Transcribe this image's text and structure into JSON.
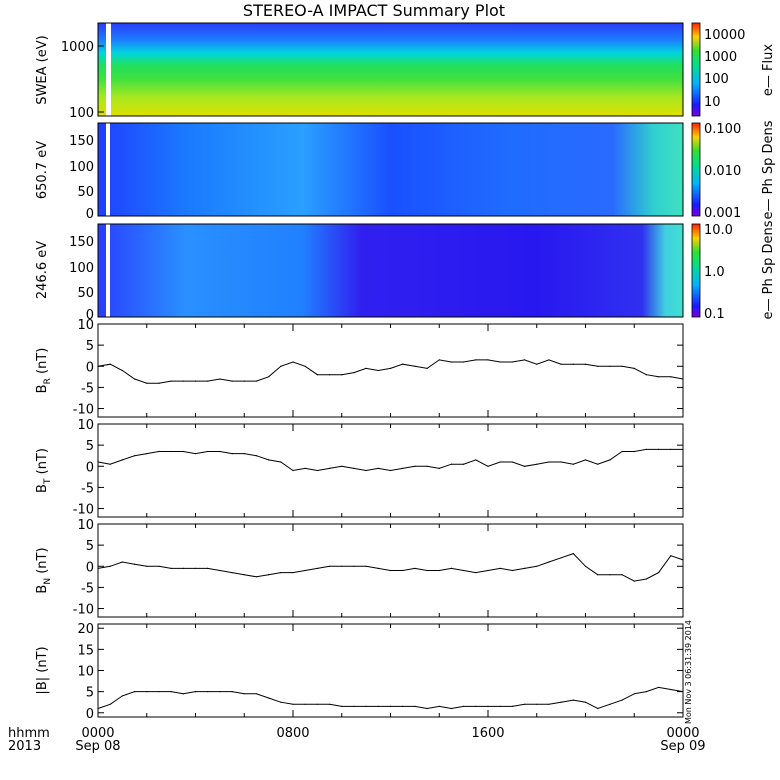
{
  "title": "STEREO-A IMPACT Summary Plot",
  "corner": {
    "line1": "hhmm",
    "line2": "2013"
  },
  "x_ticks": [
    {
      "time": "0000",
      "date": "Sep 08"
    },
    {
      "time": "0800",
      "date": ""
    },
    {
      "time": "1600",
      "date": ""
    },
    {
      "time": "0000",
      "date": "Sep 09"
    }
  ],
  "stamp": "Mon Nov  3 06:31:39 2014",
  "chart_data": [
    {
      "type": "heatmap",
      "ylabel": "SWEA (eV)",
      "yscale": "log",
      "ylim": [
        100,
        2000
      ],
      "yticks": [
        "1000",
        "100"
      ],
      "colorbar": {
        "label": "e— Flux",
        "ticks": [
          "10000",
          "1000",
          "100",
          "10"
        ],
        "range": [
          3,
          20000
        ],
        "scale": "log"
      }
    },
    {
      "type": "heatmap",
      "ylabel": "650.7 eV",
      "ylim": [
        0,
        180
      ],
      "yticks": [
        "150",
        "100",
        "50",
        "0"
      ],
      "colorbar": {
        "label": "e— Ph Sp Dens",
        "ticks": [
          "0.100",
          "0.010",
          "0.001"
        ],
        "range": [
          0.001,
          0.1
        ],
        "scale": "log"
      }
    },
    {
      "type": "heatmap",
      "ylabel": "246.6 eV",
      "ylim": [
        0,
        180
      ],
      "yticks": [
        "150",
        "100",
        "50",
        "0"
      ],
      "colorbar": {
        "label": "e— Ph Sp Dens",
        "ticks": [
          "10.0",
          "1.0",
          "0.1"
        ],
        "range": [
          0.1,
          10
        ],
        "scale": "log"
      }
    },
    {
      "type": "line",
      "ylabel": "B_R (nT)",
      "ylim": [
        -12,
        10
      ],
      "yticks": [
        "10",
        "5",
        "0",
        "-5",
        "-10"
      ],
      "x_hours": [
        0,
        0.5,
        1,
        1.5,
        2,
        2.5,
        3,
        3.5,
        4,
        4.5,
        5,
        5.5,
        6,
        6.5,
        7,
        7.5,
        8,
        8.5,
        9,
        9.5,
        10,
        10.5,
        11,
        11.5,
        12,
        12.5,
        13,
        13.5,
        14,
        14.5,
        15,
        15.5,
        16,
        16.5,
        17,
        17.5,
        18,
        18.5,
        19,
        19.5,
        20,
        20.5,
        21,
        21.5,
        22,
        22.5,
        23,
        23.5,
        24
      ],
      "values": [
        0,
        0.5,
        -1,
        -3,
        -4,
        -4,
        -3.5,
        -3.5,
        -3.5,
        -3.5,
        -3,
        -3.5,
        -3.5,
        -3.5,
        -2.5,
        0,
        1,
        0,
        -2,
        -2,
        -2,
        -1.5,
        -0.5,
        -1,
        -0.5,
        0.5,
        0,
        -0.5,
        1.5,
        1,
        1,
        1.5,
        1.5,
        1,
        1,
        1.5,
        0.5,
        1.5,
        0.5,
        0.5,
        0.5,
        0,
        0,
        0,
        -0.5,
        -2,
        -2.5,
        -2.5,
        -3
      ]
    },
    {
      "type": "line",
      "ylabel": "B_T (nT)",
      "ylim": [
        -12,
        10
      ],
      "yticks": [
        "10",
        "5",
        "0",
        "-5",
        "-10"
      ],
      "x_hours": [
        0,
        0.5,
        1,
        1.5,
        2,
        2.5,
        3,
        3.5,
        4,
        4.5,
        5,
        5.5,
        6,
        6.5,
        7,
        7.5,
        8,
        8.5,
        9,
        9.5,
        10,
        10.5,
        11,
        11.5,
        12,
        12.5,
        13,
        13.5,
        14,
        14.5,
        15,
        15.5,
        16,
        16.5,
        17,
        17.5,
        18,
        18.5,
        19,
        19.5,
        20,
        20.5,
        21,
        21.5,
        22,
        22.5,
        23,
        23.5,
        24
      ],
      "values": [
        1,
        0.5,
        1.5,
        2.5,
        3,
        3.5,
        3.5,
        3.5,
        3,
        3.5,
        3.5,
        3,
        3,
        2.5,
        1.5,
        1,
        -1,
        -0.5,
        -1,
        -0.5,
        0,
        -0.5,
        -1,
        -0.5,
        -1,
        -0.5,
        0,
        0,
        -0.5,
        0.5,
        0.5,
        1.5,
        0,
        1,
        1,
        0,
        0.5,
        1,
        1,
        0.5,
        1.5,
        0.5,
        1.5,
        3.5,
        3.5,
        4,
        4,
        4,
        4
      ]
    },
    {
      "type": "line",
      "ylabel": "B_N (nT)",
      "ylim": [
        -12,
        10
      ],
      "yticks": [
        "10",
        "5",
        "0",
        "-5",
        "-10"
      ],
      "x_hours": [
        0,
        0.5,
        1,
        1.5,
        2,
        2.5,
        3,
        3.5,
        4,
        4.5,
        5,
        5.5,
        6,
        6.5,
        7,
        7.5,
        8,
        8.5,
        9,
        9.5,
        10,
        10.5,
        11,
        11.5,
        12,
        12.5,
        13,
        13.5,
        14,
        14.5,
        15,
        15.5,
        16,
        16.5,
        17,
        17.5,
        18,
        18.5,
        19,
        19.5,
        20,
        20.5,
        21,
        21.5,
        22,
        22.5,
        23,
        23.5,
        24
      ],
      "values": [
        -0.5,
        0,
        1,
        0.5,
        0,
        0,
        -0.5,
        -0.5,
        -0.5,
        -0.5,
        -1,
        -1.5,
        -2,
        -2.5,
        -2,
        -1.5,
        -1.5,
        -1,
        -0.5,
        0,
        0,
        0,
        0,
        -0.5,
        -1,
        -1,
        -0.5,
        -1,
        -1,
        -0.5,
        -1,
        -1.5,
        -1,
        -0.5,
        -1,
        -0.5,
        0,
        1,
        2,
        3,
        0,
        -2,
        -2,
        -2,
        -3.5,
        -3,
        -1.5,
        2.5,
        1.5
      ]
    },
    {
      "type": "line",
      "ylabel": "|B| (nT)",
      "ylim": [
        -1,
        21
      ],
      "yticks": [
        "20",
        "15",
        "10",
        "5",
        "0"
      ],
      "x_hours": [
        0,
        0.5,
        1,
        1.5,
        2,
        2.5,
        3,
        3.5,
        4,
        4.5,
        5,
        5.5,
        6,
        6.5,
        7,
        7.5,
        8,
        8.5,
        9,
        9.5,
        10,
        10.5,
        11,
        11.5,
        12,
        12.5,
        13,
        13.5,
        14,
        14.5,
        15,
        15.5,
        16,
        16.5,
        17,
        17.5,
        18,
        18.5,
        19,
        19.5,
        20,
        20.5,
        21,
        21.5,
        22,
        22.5,
        23,
        23.5,
        24
      ],
      "values": [
        1,
        2,
        4,
        5,
        5,
        5,
        5,
        4.5,
        5,
        5,
        5,
        5,
        4.5,
        4.5,
        3.5,
        2.5,
        2,
        2,
        2,
        2,
        1.5,
        1.5,
        1.5,
        1.5,
        1.5,
        1.5,
        1.5,
        1,
        1.5,
        1,
        1.5,
        1.5,
        1.5,
        1.5,
        1.5,
        2,
        2,
        2,
        2.5,
        3,
        2.5,
        1,
        2,
        3,
        4.5,
        5,
        6,
        5.5,
        5
      ]
    }
  ]
}
